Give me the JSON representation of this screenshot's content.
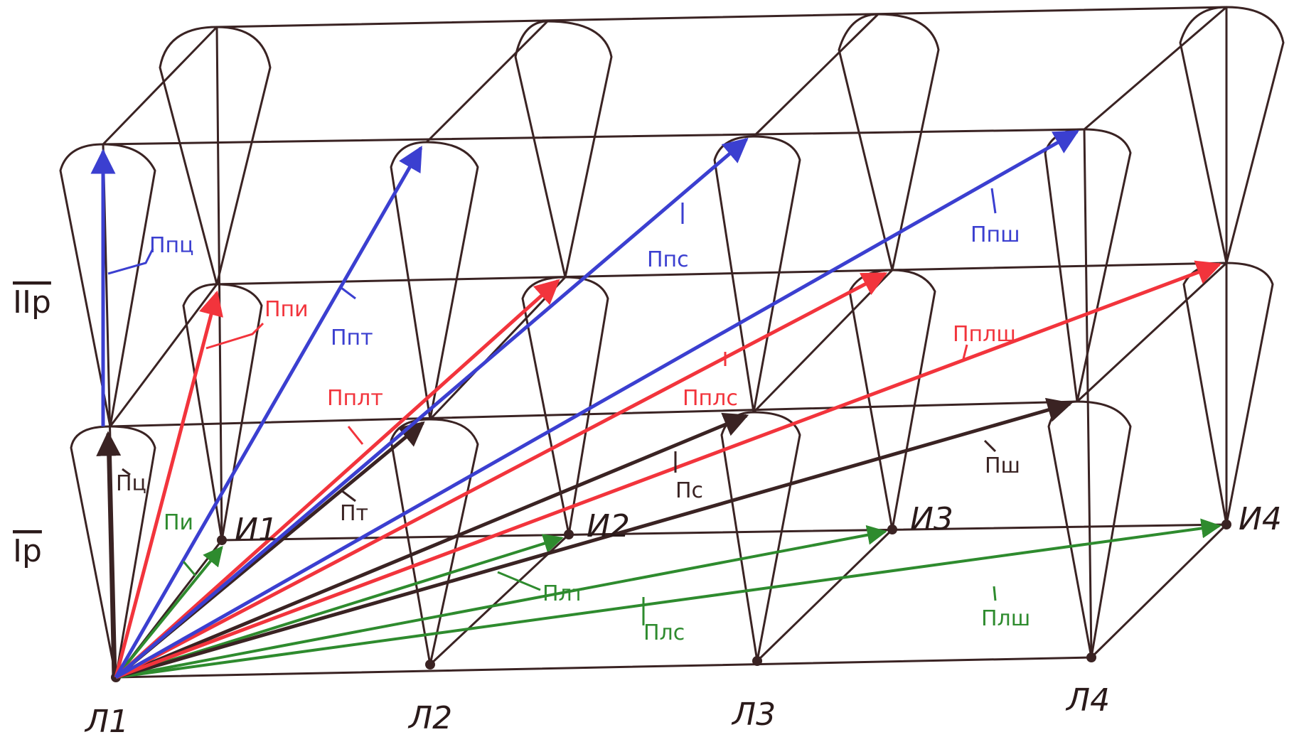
{
  "colors": {
    "ink": "#3a2323",
    "blue": "#3b3fd0",
    "red": "#f2343c",
    "green": "#2e8b2e",
    "paper": "#ffffff"
  },
  "nodes": {
    "L1": "Л1",
    "L2": "Л2",
    "L3": "Л3",
    "L4": "Л4",
    "I1": "И1",
    "I2": "И2",
    "I3": "И3",
    "I4": "И4"
  },
  "axes": {
    "level1": "Ip",
    "level2": "IIp"
  },
  "vector_labels": {
    "pts": "Пц",
    "pi": "Пи",
    "pt": "Пт",
    "pc": "Пс",
    "psh": "Пш",
    "plt": "Плт",
    "plc": "Плс",
    "plsh": "Плш",
    "ppts": "Ппц",
    "ppi": "Ппи",
    "ppt": "Ппт",
    "ppc": "Ппс",
    "ppsh": "Ппш",
    "pplt": "Пплт",
    "pplc": "Пплс",
    "pplsh": "Пплш"
  }
}
